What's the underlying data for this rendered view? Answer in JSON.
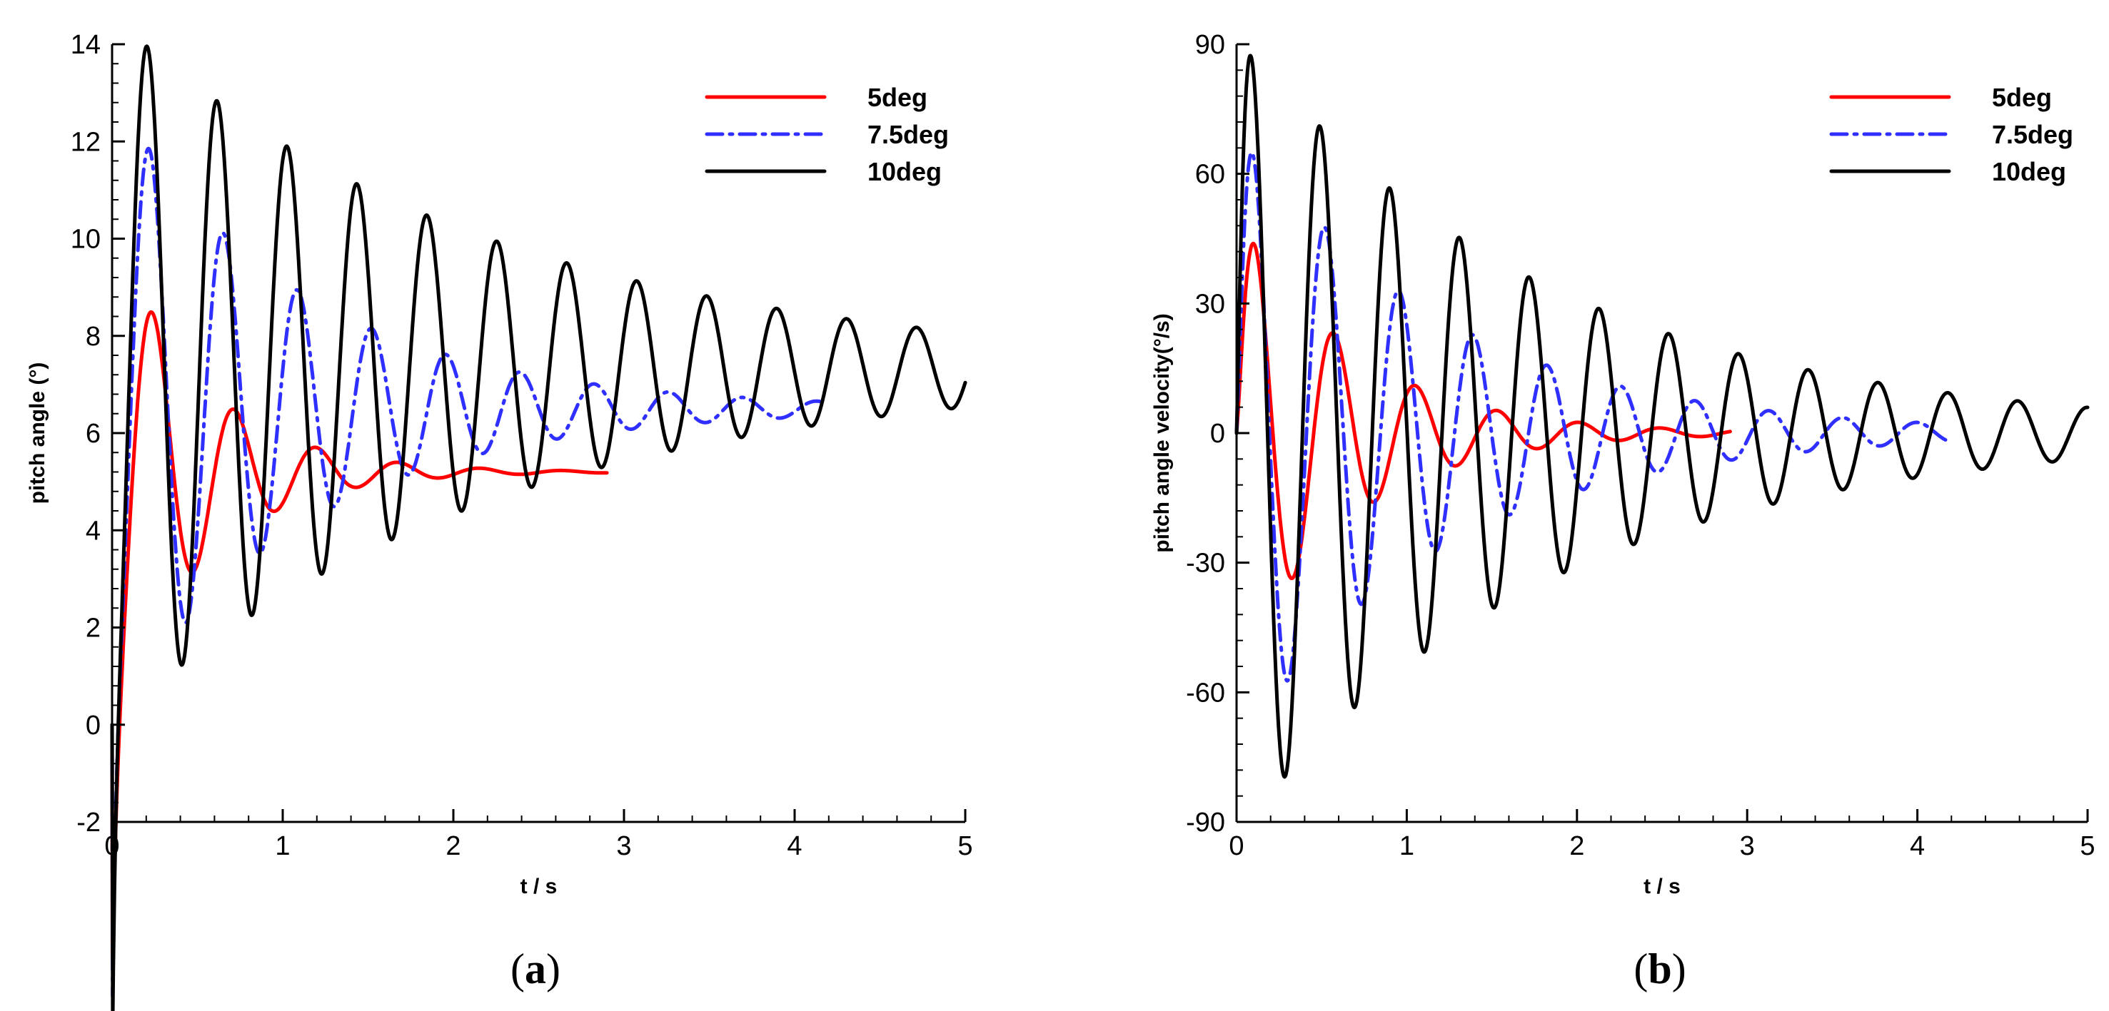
{
  "chart_data": [
    {
      "type": "line",
      "panel_label": {
        "open": "(",
        "letter": "a",
        "close": ")"
      },
      "xlabel": "t / s",
      "ylabel": "pitch angle (°)",
      "xlim": [
        0,
        5
      ],
      "ylim": [
        -2,
        14
      ],
      "xticks": [
        0,
        1,
        2,
        3,
        4,
        5
      ],
      "yticks": [
        -2,
        0,
        2,
        4,
        6,
        8,
        10,
        12,
        14
      ],
      "legend": {
        "placement": "top-right"
      },
      "series": [
        {
          "name": "5deg",
          "color": "#ff0000",
          "dash": "solid",
          "model": {
            "t_end": 2.9,
            "equilibrium": 5.2,
            "amp": 5.2,
            "decay": 1.95,
            "period": 0.48,
            "phase": -1.5708,
            "rise": 0.03
          }
        },
        {
          "name": "7.5deg",
          "color": "#2f2fff",
          "dash": "dashdot",
          "model": {
            "t_end": 4.15,
            "equilibrium": 6.5,
            "amp": 6.5,
            "decay": 0.9,
            "period": 0.435,
            "phase": -1.5708,
            "rise": 0.02
          }
        },
        {
          "name": "10deg",
          "color": "#000000",
          "dash": "solid",
          "model": {
            "t_end": 5.0,
            "equilibrium": 7.3,
            "amp": 7.3,
            "decay": 0.45,
            "period": 0.41,
            "phase": -1.5708,
            "rise": 0.02
          }
        }
      ]
    },
    {
      "type": "line",
      "panel_label": {
        "open": "(",
        "letter": "b",
        "close": ")"
      },
      "xlabel": "t / s",
      "ylabel": "pitch angle velocity(°/s)",
      "xlim": [
        0,
        5
      ],
      "ylim": [
        -90,
        90
      ],
      "xticks": [
        0,
        1,
        2,
        3,
        4,
        5
      ],
      "yticks": [
        -90,
        -60,
        -30,
        0,
        30,
        60,
        90
      ],
      "legend": {
        "placement": "top-right"
      },
      "series": [
        {
          "name": "5deg",
          "color": "#ff0000",
          "dash": "solid",
          "model": {
            "t_end": 2.9,
            "equilibrium": 0,
            "amp": 56,
            "decay": 1.55,
            "period": 0.48,
            "phase": 0.35,
            "rise": 0.04
          }
        },
        {
          "name": "7.5deg",
          "color": "#2f2fff",
          "dash": "dashdot",
          "model": {
            "t_end": 4.2,
            "equilibrium": 0,
            "amp": 74,
            "decay": 0.85,
            "period": 0.435,
            "phase": 0.35,
            "rise": 0.03
          }
        },
        {
          "name": "10deg",
          "color": "#000000",
          "dash": "solid",
          "model": {
            "t_end": 5.0,
            "equilibrium": 0,
            "amp": 93,
            "decay": 0.55,
            "period": 0.41,
            "phase": 0.35,
            "rise": 0.02
          }
        }
      ]
    }
  ]
}
